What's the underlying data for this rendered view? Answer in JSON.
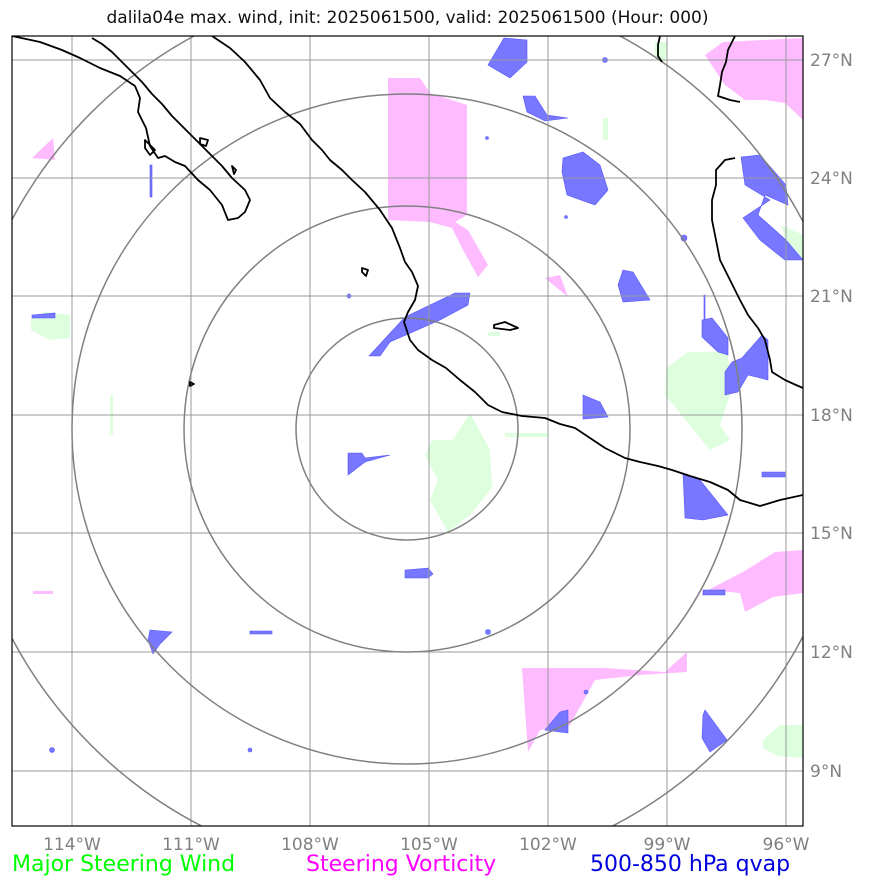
{
  "title": "dalila04e max. wind, init: 2025061500, valid: 2025061500 (Hour: 000)",
  "axes": {
    "lon_ticks": [
      "114°W",
      "111°W",
      "108°W",
      "105°W",
      "102°W",
      "99°W",
      "96°W"
    ],
    "lat_ticks": [
      "27°N",
      "24°N",
      "21°N",
      "18°N",
      "15°N",
      "12°N",
      "9°N"
    ],
    "lon_range": [
      -115.5,
      -95.5
    ],
    "lat_range": [
      7.8,
      27.6
    ],
    "grid": true
  },
  "storm_center": {
    "lon": -105.6,
    "lat": 17.6
  },
  "range_rings": [
    "inner",
    "second",
    "third",
    "outer"
  ],
  "legend": {
    "wind_label": "Major Steering Wind",
    "wind_color": "#00ff00",
    "vorticity_label": "Steering Vorticity",
    "vorticity_color": "#ff00ff",
    "qvap_label": "500-850 hPa qvap",
    "qvap_color": "#0000dd"
  },
  "colors": {
    "wind_fill": "#ddffdd",
    "vorticity_fill": "#ffbbff",
    "qvap_fill": "#7777ff",
    "coastline": "#000000",
    "grid": "#999999",
    "rings": "#808080"
  }
}
